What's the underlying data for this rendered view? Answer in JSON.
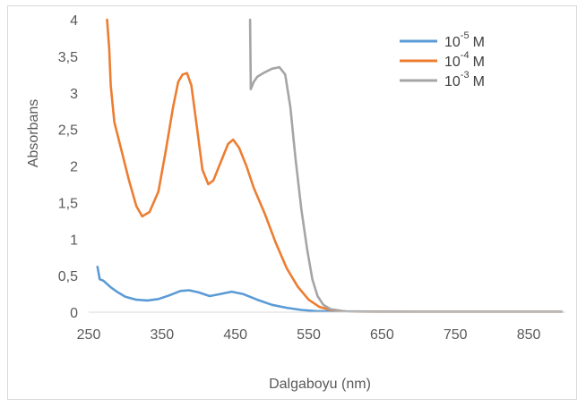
{
  "chart_data": {
    "type": "line",
    "title": "",
    "xlabel": "Dalgaboyu (nm)",
    "ylabel": "Absorbans",
    "xlim": [
      250,
      900
    ],
    "ylim": [
      0,
      4
    ],
    "x_ticks": [
      "250",
      "350",
      "450",
      "550",
      "650",
      "750",
      "850"
    ],
    "y_ticks": [
      "0",
      "0,5",
      "1",
      "1,5",
      "2",
      "2,5",
      "3",
      "3,5",
      "4"
    ],
    "grid": false,
    "legend_position": "top-right",
    "series": [
      {
        "name": "10-5 M",
        "legend_base": "10",
        "legend_exp": "-5",
        "legend_unit": "M",
        "color": "#5b9bd5",
        "points": [
          [
            262,
            0.62
          ],
          [
            265,
            0.45
          ],
          [
            270,
            0.43
          ],
          [
            280,
            0.34
          ],
          [
            290,
            0.27
          ],
          [
            300,
            0.21
          ],
          [
            315,
            0.17
          ],
          [
            330,
            0.16
          ],
          [
            345,
            0.18
          ],
          [
            360,
            0.23
          ],
          [
            375,
            0.29
          ],
          [
            387,
            0.3
          ],
          [
            400,
            0.27
          ],
          [
            415,
            0.22
          ],
          [
            430,
            0.25
          ],
          [
            445,
            0.28
          ],
          [
            460,
            0.25
          ],
          [
            480,
            0.17
          ],
          [
            500,
            0.1
          ],
          [
            520,
            0.06
          ],
          [
            540,
            0.03
          ],
          [
            560,
            0.015
          ],
          [
            600,
            0.01
          ],
          [
            700,
            0.005
          ],
          [
            895,
            0.005
          ]
        ]
      },
      {
        "name": "10-4 M",
        "legend_base": "10",
        "legend_exp": "-4",
        "legend_unit": "M",
        "color": "#ed7d31",
        "points": [
          [
            275,
            4.0
          ],
          [
            278,
            3.6
          ],
          [
            280,
            3.1
          ],
          [
            285,
            2.6
          ],
          [
            295,
            2.2
          ],
          [
            305,
            1.8
          ],
          [
            315,
            1.45
          ],
          [
            323,
            1.31
          ],
          [
            333,
            1.37
          ],
          [
            345,
            1.65
          ],
          [
            355,
            2.2
          ],
          [
            365,
            2.8
          ],
          [
            372,
            3.15
          ],
          [
            378,
            3.25
          ],
          [
            384,
            3.27
          ],
          [
            390,
            3.1
          ],
          [
            398,
            2.5
          ],
          [
            405,
            1.95
          ],
          [
            413,
            1.75
          ],
          [
            420,
            1.8
          ],
          [
            430,
            2.05
          ],
          [
            440,
            2.3
          ],
          [
            447,
            2.36
          ],
          [
            455,
            2.25
          ],
          [
            465,
            2.0
          ],
          [
            475,
            1.7
          ],
          [
            490,
            1.35
          ],
          [
            505,
            0.95
          ],
          [
            520,
            0.6
          ],
          [
            535,
            0.35
          ],
          [
            550,
            0.17
          ],
          [
            565,
            0.07
          ],
          [
            580,
            0.03
          ],
          [
            600,
            0.01
          ],
          [
            650,
            0.005
          ],
          [
            895,
            0.005
          ]
        ]
      },
      {
        "name": "10-3 M",
        "legend_base": "10",
        "legend_exp": "-3",
        "legend_unit": "M",
        "color": "#a5a5a5",
        "points": [
          [
            470,
            4.0
          ],
          [
            471,
            3.05
          ],
          [
            475,
            3.15
          ],
          [
            480,
            3.22
          ],
          [
            490,
            3.28
          ],
          [
            500,
            3.33
          ],
          [
            510,
            3.35
          ],
          [
            518,
            3.25
          ],
          [
            525,
            2.8
          ],
          [
            532,
            2.1
          ],
          [
            540,
            1.4
          ],
          [
            548,
            0.85
          ],
          [
            555,
            0.45
          ],
          [
            562,
            0.22
          ],
          [
            570,
            0.1
          ],
          [
            580,
            0.04
          ],
          [
            600,
            0.01
          ],
          [
            650,
            0.005
          ],
          [
            895,
            0.005
          ]
        ]
      }
    ]
  }
}
